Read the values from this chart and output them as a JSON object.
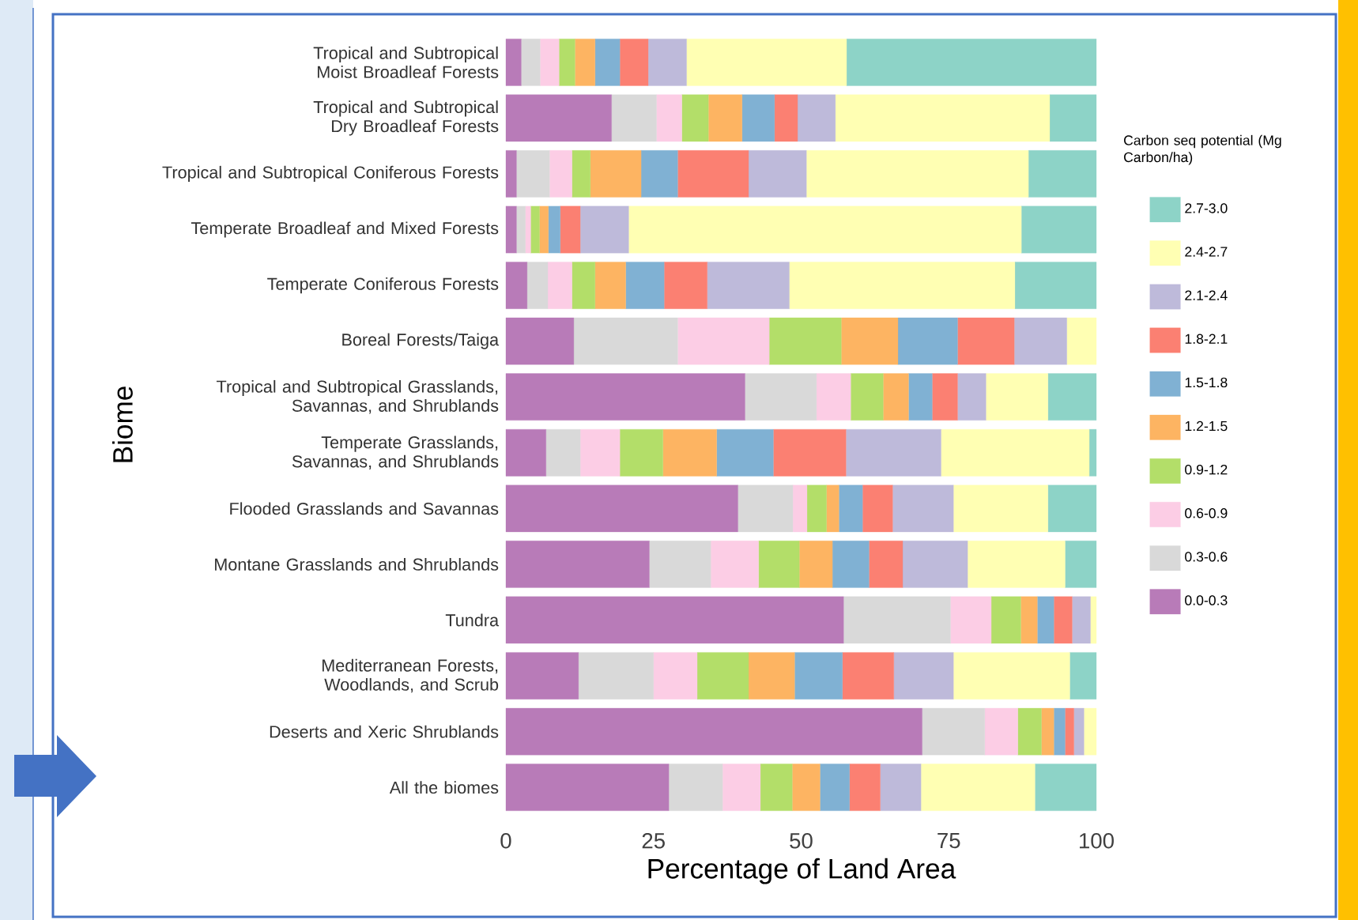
{
  "chart_data": {
    "type": "bar",
    "orientation": "horizontal",
    "stacked": true,
    "xlabel": "Percentage of Land Area",
    "ylabel": "Biome",
    "legend_title": "Carbon seq potential (Mg Carbon/ha)",
    "legend": "right",
    "xlim": [
      0,
      100
    ],
    "xticks": [
      0,
      25,
      50,
      75,
      100
    ],
    "grid": false,
    "categories": [
      "Tropical and Subtropical Moist Broadleaf Forests",
      "Tropical and Subtropical Dry Broadleaf Forests",
      "Tropical and Subtropical Coniferous Forests",
      "Temperate Broadleaf and Mixed Forests",
      "Temperate Coniferous Forests",
      "Boreal Forests/Taiga",
      "Tropical and Subtropical Grasslands, Savannas, and Shrublands",
      "Temperate Grasslands, Savannas, and Shrublands",
      "Flooded Grasslands and Savannas",
      "Montane Grasslands and Shrublands",
      "Tundra",
      "Mediterranean Forests, Woodlands, and Scrub",
      "Deserts and Xeric Shrublands",
      "All the biomes"
    ],
    "series": [
      {
        "name": "0.0-0.3",
        "color": "#b87bb8",
        "values": [
          2.6,
          17.9,
          1.8,
          1.8,
          3.6,
          11.5,
          40.5,
          6.8,
          39.3,
          24.3,
          57.2,
          12.3,
          70.5,
          27.6
        ]
      },
      {
        "name": "0.3-0.6",
        "color": "#d9d9d9",
        "values": [
          3.2,
          7.6,
          5.6,
          1.5,
          3.5,
          17.6,
          12.1,
          5.8,
          9.3,
          10.4,
          18.1,
          12.7,
          10.6,
          9.1
        ]
      },
      {
        "name": "0.6-0.9",
        "color": "#fccde5",
        "values": [
          3.2,
          4.3,
          3.8,
          0.9,
          4.1,
          15.5,
          5.8,
          6.7,
          2.4,
          8.1,
          6.9,
          7.4,
          5.6,
          6.4
        ]
      },
      {
        "name": "0.9-1.2",
        "color": "#b3de69",
        "values": [
          2.7,
          4.5,
          3.1,
          1.5,
          3.9,
          12.2,
          5.5,
          7.3,
          3.3,
          6.9,
          5.0,
          8.7,
          4.0,
          5.4
        ]
      },
      {
        "name": "1.2-1.5",
        "color": "#fdb462",
        "values": [
          3.4,
          5.7,
          8.6,
          1.5,
          5.2,
          9.6,
          4.3,
          9.1,
          2.1,
          5.6,
          2.8,
          7.8,
          2.1,
          4.7
        ]
      },
      {
        "name": "1.5-1.8",
        "color": "#80b1d3",
        "values": [
          4.2,
          5.5,
          6.2,
          2.0,
          6.5,
          10.1,
          4.0,
          9.6,
          4.0,
          6.2,
          2.8,
          8.1,
          1.9,
          5.0
        ]
      },
      {
        "name": "1.8-2.1",
        "color": "#fb8072",
        "values": [
          4.8,
          3.9,
          12.0,
          3.4,
          7.3,
          9.6,
          4.3,
          12.3,
          5.1,
          5.7,
          3.1,
          8.7,
          1.5,
          5.2
        ]
      },
      {
        "name": "2.1-2.4",
        "color": "#bebada",
        "values": [
          6.5,
          6.4,
          9.8,
          8.2,
          13.9,
          8.9,
          4.8,
          16.1,
          10.3,
          11.0,
          3.1,
          10.1,
          1.7,
          6.9
        ]
      },
      {
        "name": "2.4-2.7",
        "color": "#ffffb3",
        "values": [
          27.1,
          36.3,
          37.6,
          66.5,
          38.2,
          5.0,
          10.5,
          25.1,
          16.0,
          16.5,
          1.0,
          19.7,
          2.1,
          19.3
        ]
      },
      {
        "name": "2.7-3.0",
        "color": "#8dd3c7",
        "values": [
          42.3,
          7.9,
          11.5,
          12.7,
          13.8,
          0,
          8.2,
          1.2,
          8.2,
          5.3,
          0,
          4.5,
          0,
          10.4
        ]
      }
    ]
  }
}
